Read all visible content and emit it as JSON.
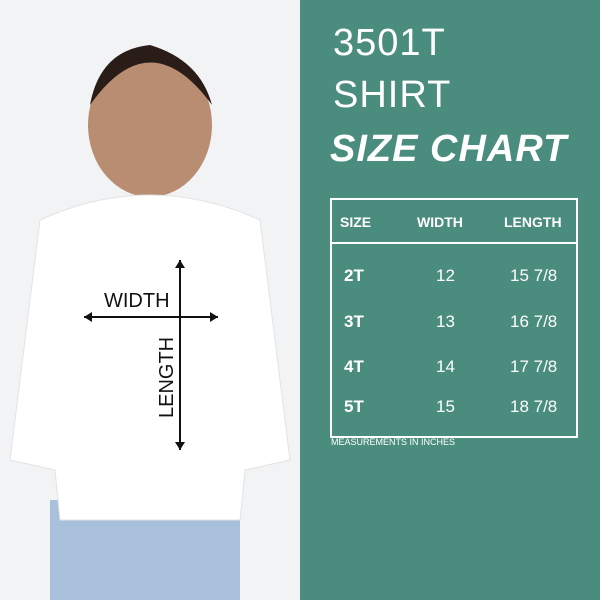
{
  "title": {
    "line1": "3501T",
    "line2": "SHIRT",
    "line3": "SIZE CHART"
  },
  "diagram": {
    "width_label": "WIDTH",
    "length_label": "LENGTH"
  },
  "table": {
    "headers": [
      "SIZE",
      "WIDTH",
      "LENGTH"
    ],
    "rows": [
      {
        "size": "2T",
        "width": "12",
        "length": "15 7/8"
      },
      {
        "size": "3T",
        "width": "13",
        "length": "16 7/8"
      },
      {
        "size": "4T",
        "width": "14",
        "length": "17 7/8"
      },
      {
        "size": "5T",
        "width": "15",
        "length": "18 7/8"
      }
    ]
  },
  "note": "MEASUREMENTS IN INCHES",
  "colors": {
    "panel": "#4a8c7d",
    "shirt": "#ffffff",
    "jeans": "#9fb8d6"
  }
}
